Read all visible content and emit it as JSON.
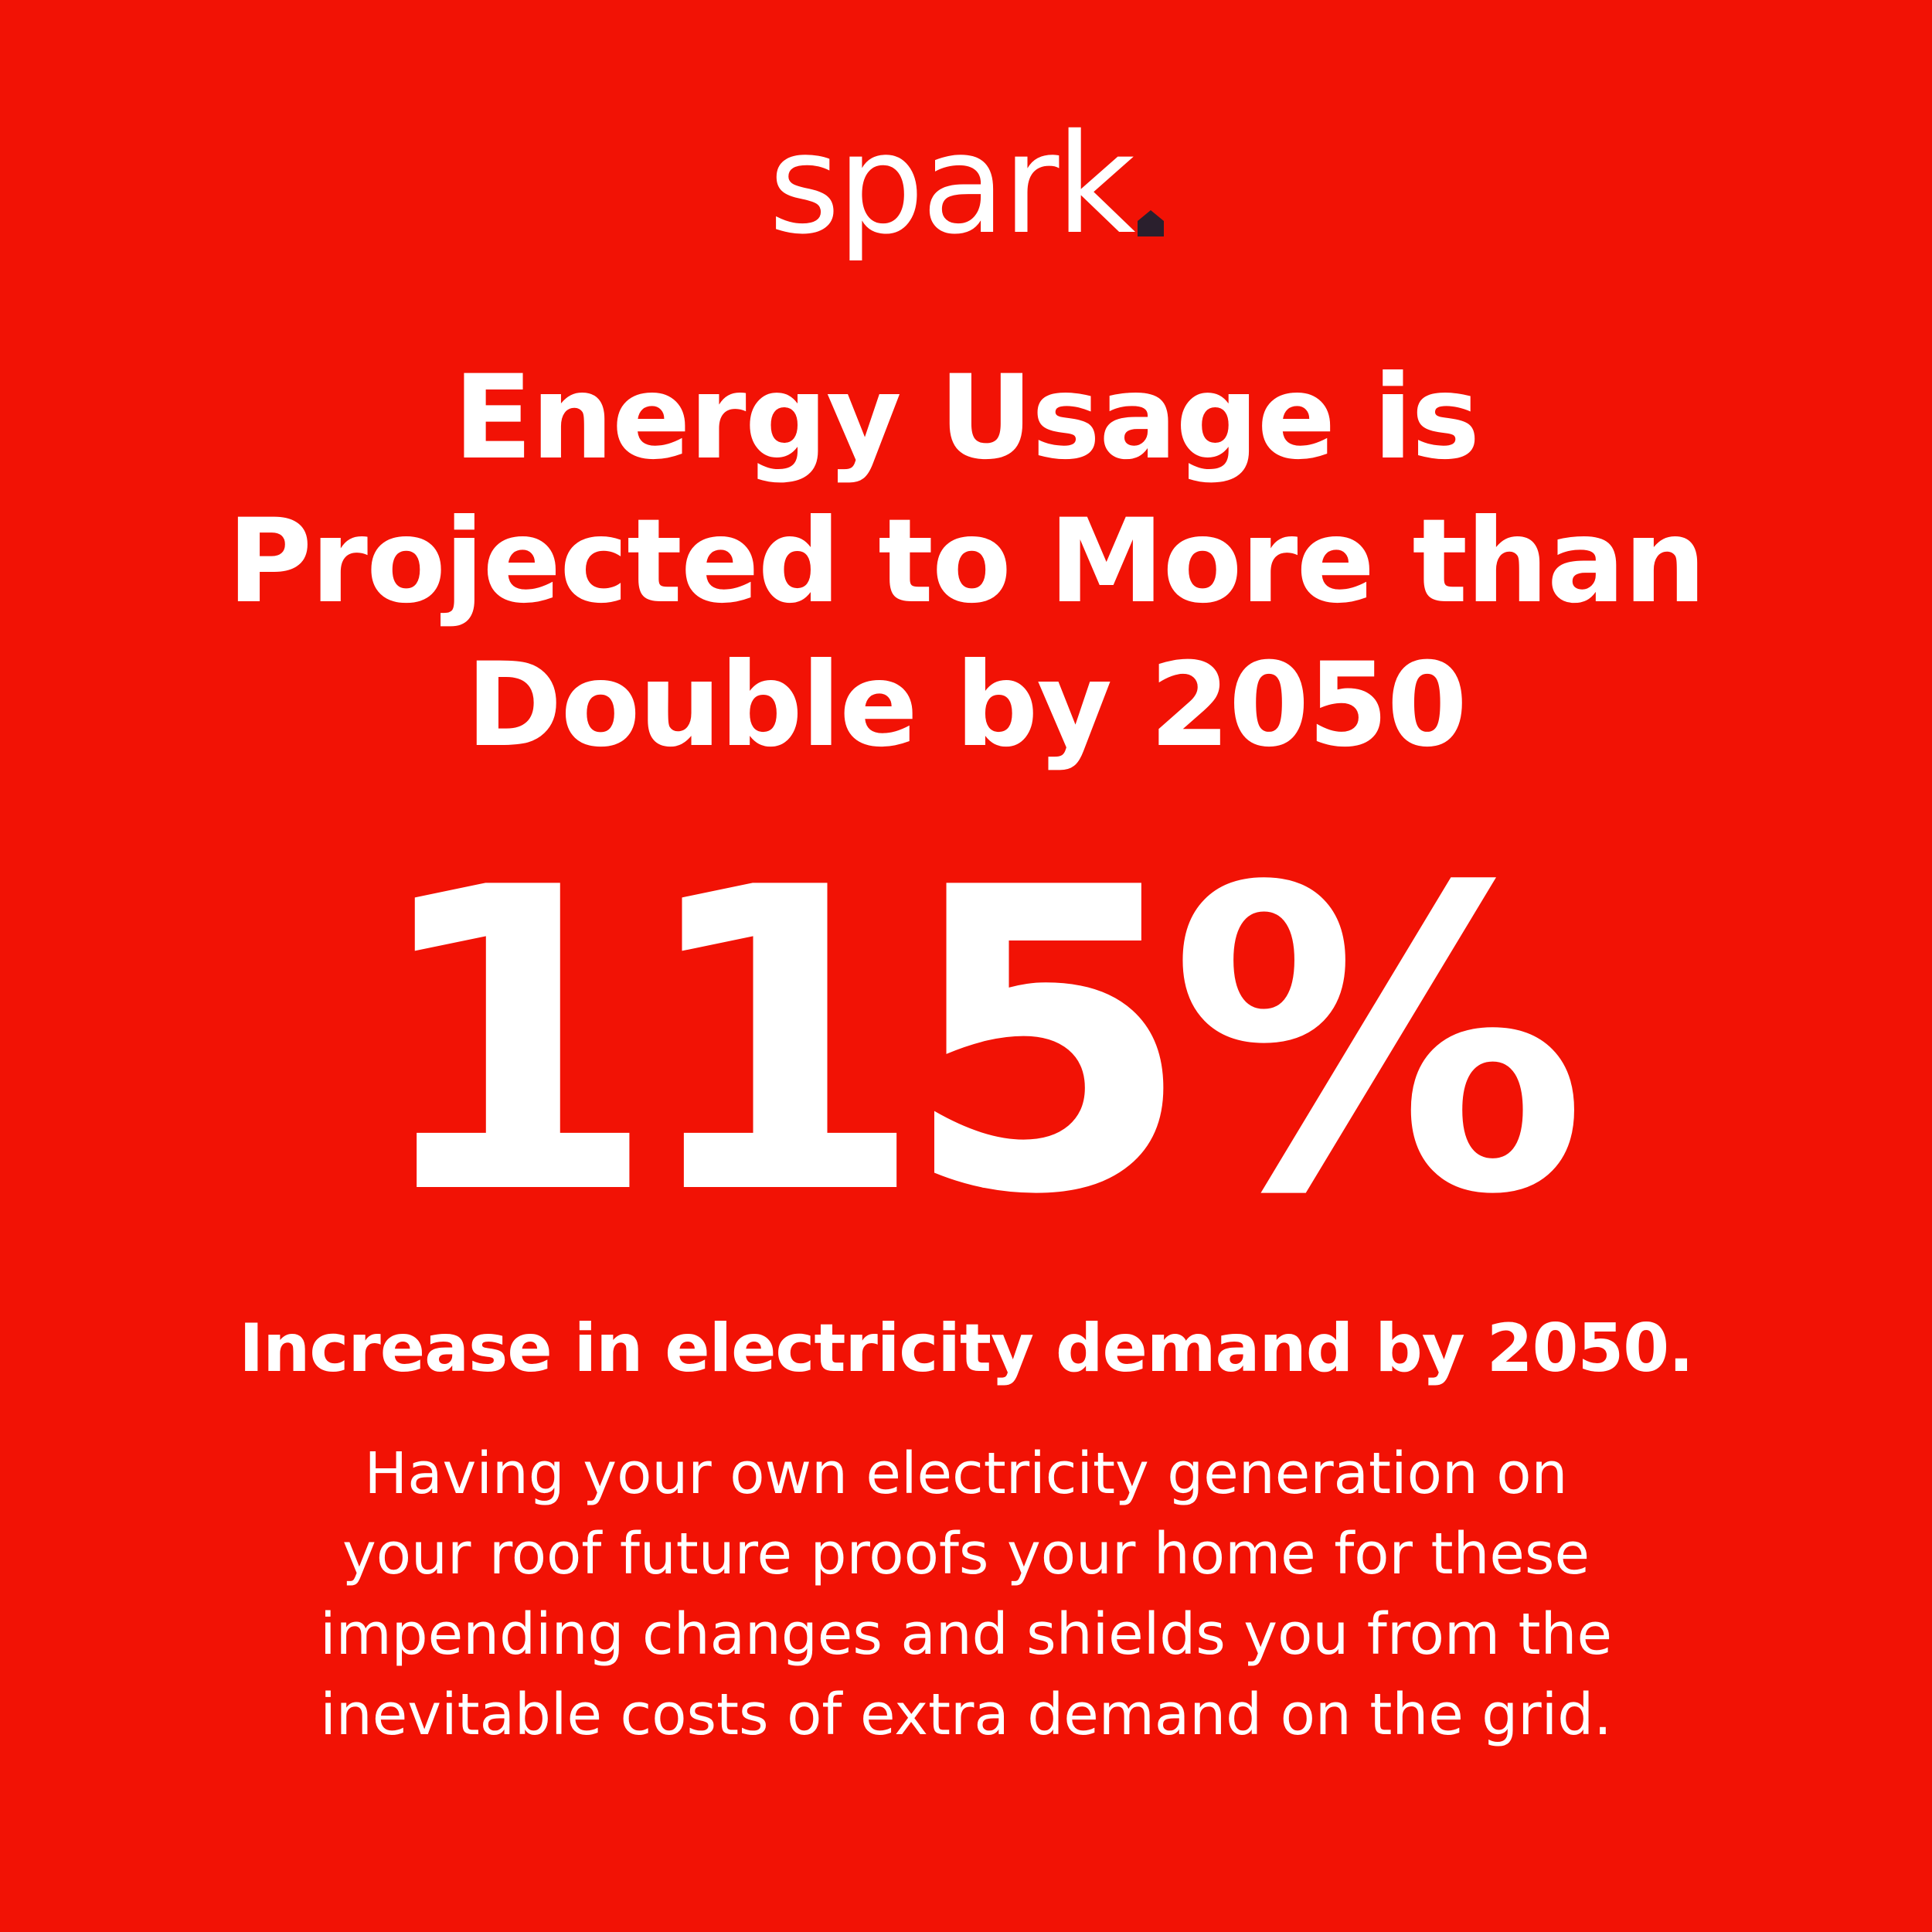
{
  "brand": {
    "logo_text": "spark",
    "mark_icon": "house-dot-icon",
    "mark_color": "#2a1f2d"
  },
  "colors": {
    "background": "#f21205",
    "text": "#ffffff"
  },
  "headline": {
    "lines": [
      "Energy Usage is",
      "Projected to More than",
      "Double by 2050"
    ]
  },
  "stat": {
    "value": "115%"
  },
  "subhead": "Increase in electricity demand by 2050.",
  "body": {
    "lines": [
      "Having your own electricity generation on",
      "your roof future proofs your home for these",
      "impending changes and shields you from the",
      "inevitable costs of extra demand on the grid."
    ]
  }
}
